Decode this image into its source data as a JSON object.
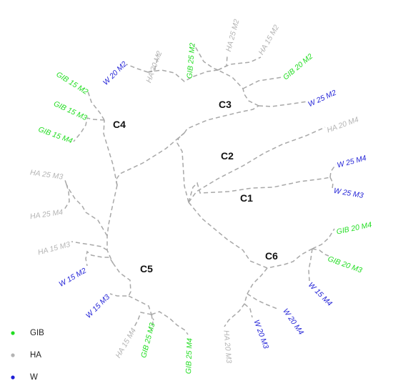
{
  "colors": {
    "GIB": "#22dd22",
    "HA": "#b4b4b4",
    "W": "#1f1fd6"
  },
  "clusters": [
    "C1",
    "C2",
    "C3",
    "C4",
    "C5",
    "C6"
  ],
  "tips": [
    {
      "id": "t_w20m2",
      "label": "W 20 M2",
      "group": "W"
    },
    {
      "id": "t_ha20m2",
      "label": "HA 20 M2",
      "group": "HA"
    },
    {
      "id": "t_gib25m2",
      "label": "GIB 25 M2",
      "group": "GIB"
    },
    {
      "id": "t_ha25m2",
      "label": "HA 25 M2",
      "group": "HA"
    },
    {
      "id": "t_ha15m2",
      "label": "HA 15 M2",
      "group": "HA"
    },
    {
      "id": "t_gib20m2",
      "label": "GIB 20 M2",
      "group": "GIB"
    },
    {
      "id": "t_w25m2",
      "label": "W 25 M2",
      "group": "W"
    },
    {
      "id": "t_ha20m4",
      "label": "HA 20 M4",
      "group": "HA"
    },
    {
      "id": "t_w25m4",
      "label": "W 25 M4",
      "group": "W"
    },
    {
      "id": "t_w25m3",
      "label": "W 25 M3",
      "group": "W"
    },
    {
      "id": "t_gib20m4",
      "label": "GIB 20 M4",
      "group": "GIB"
    },
    {
      "id": "t_gib20m3",
      "label": "GIB 20 M3",
      "group": "GIB"
    },
    {
      "id": "t_w15m4",
      "label": "W 15 M4",
      "group": "W"
    },
    {
      "id": "t_w20m4",
      "label": "W 20 M4",
      "group": "W"
    },
    {
      "id": "t_w20m3",
      "label": "W 20 M3",
      "group": "W"
    },
    {
      "id": "t_ha20m3",
      "label": "HA 20 M3",
      "group": "HA"
    },
    {
      "id": "t_gib25m4",
      "label": "GIB 25 M4",
      "group": "GIB"
    },
    {
      "id": "t_gib25m3",
      "label": "GIB 25 M3",
      "group": "GIB"
    },
    {
      "id": "t_ha15m4",
      "label": "HA 15 M4",
      "group": "HA"
    },
    {
      "id": "t_w15m3",
      "label": "W 15 M3",
      "group": "W"
    },
    {
      "id": "t_w15m2",
      "label": "W 15 M2",
      "group": "W"
    },
    {
      "id": "t_ha15m3",
      "label": "HA 15 M3",
      "group": "HA"
    },
    {
      "id": "t_ha25m4",
      "label": "HA 25 M4",
      "group": "HA"
    },
    {
      "id": "t_ha25m3",
      "label": "HA 25 M3",
      "group": "HA"
    },
    {
      "id": "t_gib15m4",
      "label": "GIB 15 M4",
      "group": "GIB"
    },
    {
      "id": "t_gib15m3",
      "label": "GIB 15 M3",
      "group": "GIB"
    },
    {
      "id": "t_gib15m2",
      "label": "GIB 15 M2",
      "group": "GIB"
    }
  ],
  "legend": [
    {
      "label": "GIB",
      "group": "GIB"
    },
    {
      "label": "HA",
      "group": "HA"
    },
    {
      "label": "W",
      "group": "W"
    }
  ]
}
